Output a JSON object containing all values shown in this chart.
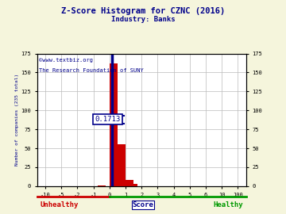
{
  "title": "Z-Score Histogram for CZNC (2016)",
  "subtitle": "Industry: Banks",
  "watermark1": "©www.textbiz.org",
  "watermark2": "The Research Foundation of SUNY",
  "annotation_text": "0.1713",
  "x_tick_labels": [
    "-10",
    "-5",
    "-2",
    "-1",
    "0",
    "1",
    "2",
    "3",
    "4",
    "5",
    "6",
    "10",
    "100"
  ],
  "y_ticks": [
    0,
    25,
    50,
    75,
    100,
    125,
    150,
    175
  ],
  "ylim": [
    0,
    175
  ],
  "bar_centers_idx": [
    3.5,
    4.25,
    4.75,
    5.25,
    5.5
  ],
  "bar_heights": [
    1,
    162,
    55,
    8,
    3
  ],
  "bar_width": 0.5,
  "marker_idx": 4.1713,
  "ann_y": 88,
  "ann_halfwidth": 0.75,
  "marker_color": "#00008B",
  "bar_color": "#cc0000",
  "unhealthy_color": "#cc0000",
  "healthy_color": "#009900",
  "score_color": "#00008B",
  "title_color": "#00008B",
  "watermark_color": "#00008B",
  "grid_color": "#bbbbbb",
  "background_color": "#f5f5dc",
  "axis_bg_color": "#ffffff",
  "xlim": [
    -0.5,
    12.5
  ],
  "tick_indices": [
    0,
    1,
    2,
    3,
    4,
    5,
    6,
    7,
    8,
    9,
    10,
    11,
    12
  ]
}
